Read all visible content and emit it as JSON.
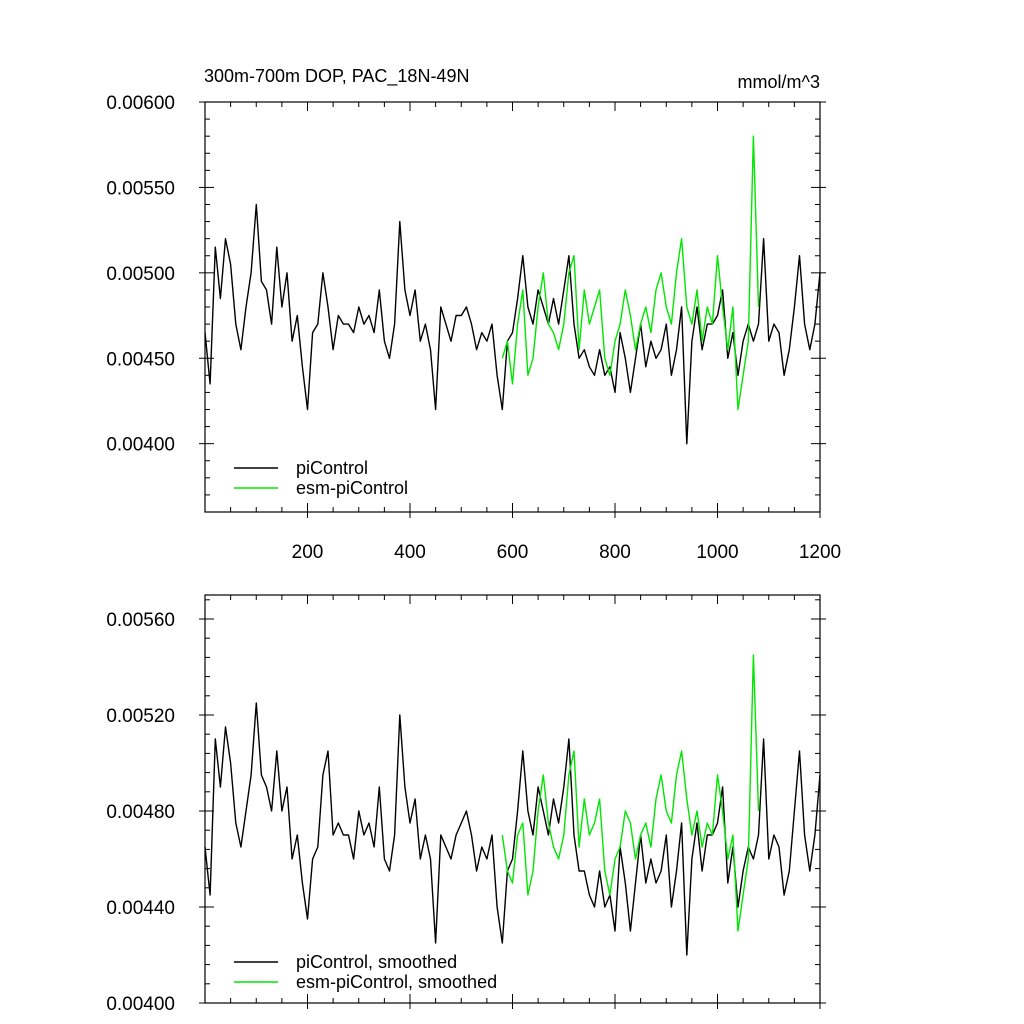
{
  "title": "300m-700m DOP, PAC_18N-49N",
  "units": "mmol/m^3",
  "colors": {
    "piControl": "#000000",
    "esm_piControl": "#00e600"
  },
  "chart_data": [
    {
      "type": "line",
      "title": "300m-700m DOP, PAC_18N-49N",
      "units": "mmol/m^3",
      "xlim": [
        0,
        1200
      ],
      "ylim": [
        0.0036,
        0.006
      ],
      "xticks": [
        200,
        400,
        600,
        800,
        1000,
        1200
      ],
      "xtick_labels": [
        "200",
        "400",
        "600",
        "800",
        "1000",
        "1200"
      ],
      "yticks": [
        0.004,
        0.0045,
        0.005,
        0.0055,
        0.006
      ],
      "ytick_labels": [
        "0.00400",
        "0.00450",
        "0.00500",
        "0.00550",
        "0.00600"
      ],
      "legend": "bottom-left",
      "grid": false,
      "series": [
        {
          "name": "piControl",
          "color": "#000000",
          "x": [
            0,
            10,
            20,
            30,
            40,
            50,
            60,
            70,
            80,
            90,
            100,
            110,
            120,
            130,
            140,
            150,
            160,
            170,
            180,
            190,
            200,
            210,
            220,
            230,
            240,
            250,
            260,
            270,
            280,
            290,
            300,
            310,
            320,
            330,
            340,
            350,
            360,
            370,
            380,
            390,
            400,
            410,
            420,
            430,
            440,
            450,
            460,
            470,
            480,
            490,
            500,
            510,
            520,
            530,
            540,
            550,
            560,
            570,
            580,
            590,
            600,
            610,
            620,
            630,
            640,
            650,
            660,
            670,
            680,
            690,
            700,
            710,
            720,
            730,
            740,
            750,
            760,
            770,
            780,
            790,
            800,
            810,
            820,
            830,
            840,
            850,
            860,
            870,
            880,
            890,
            900,
            910,
            920,
            930,
            940,
            950,
            960,
            970,
            980,
            990,
            1000,
            1010,
            1020,
            1030,
            1040,
            1050,
            1060,
            1070,
            1080,
            1090,
            1100,
            1110,
            1120,
            1130,
            1140,
            1150,
            1160,
            1170,
            1180,
            1190,
            1200
          ],
          "values": [
            0.00465,
            0.00435,
            0.00515,
            0.00485,
            0.0052,
            0.00505,
            0.0047,
            0.00455,
            0.0048,
            0.005,
            0.0054,
            0.00495,
            0.0049,
            0.0047,
            0.00515,
            0.0048,
            0.005,
            0.0046,
            0.00475,
            0.00445,
            0.0042,
            0.00465,
            0.0047,
            0.005,
            0.0048,
            0.00455,
            0.00475,
            0.0047,
            0.0047,
            0.00465,
            0.0048,
            0.0047,
            0.00475,
            0.00465,
            0.0049,
            0.0046,
            0.0045,
            0.0047,
            0.0053,
            0.0049,
            0.00475,
            0.0049,
            0.0046,
            0.0047,
            0.00455,
            0.0042,
            0.0048,
            0.0047,
            0.0046,
            0.00475,
            0.00475,
            0.0048,
            0.0047,
            0.00455,
            0.00465,
            0.0046,
            0.0047,
            0.0044,
            0.0042,
            0.0046,
            0.00465,
            0.00485,
            0.0051,
            0.0048,
            0.0047,
            0.0049,
            0.0048,
            0.0047,
            0.00485,
            0.0047,
            0.0049,
            0.0051,
            0.0047,
            0.0045,
            0.00455,
            0.00445,
            0.0044,
            0.00455,
            0.0044,
            0.00445,
            0.0043,
            0.00465,
            0.0045,
            0.0043,
            0.0045,
            0.0047,
            0.00445,
            0.0046,
            0.0045,
            0.00455,
            0.0047,
            0.0044,
            0.00455,
            0.0048,
            0.004,
            0.0046,
            0.0048,
            0.00455,
            0.0047,
            0.0047,
            0.00475,
            0.0049,
            0.0045,
            0.00465,
            0.0044,
            0.0046,
            0.0047,
            0.0046,
            0.0047,
            0.0052,
            0.0046,
            0.0047,
            0.00465,
            0.0044,
            0.00455,
            0.0048,
            0.0051,
            0.0047,
            0.00455,
            0.0047,
            0.005
          ]
        },
        {
          "name": "esm-piControl",
          "color": "#00e600",
          "x": [
            580,
            590,
            600,
            610,
            620,
            630,
            640,
            650,
            660,
            670,
            680,
            690,
            700,
            710,
            720,
            730,
            740,
            750,
            760,
            770,
            780,
            790,
            800,
            810,
            820,
            830,
            840,
            850,
            860,
            870,
            880,
            890,
            900,
            910,
            920,
            930,
            940,
            950,
            960,
            970,
            980,
            990,
            1000,
            1010,
            1020,
            1030,
            1040,
            1050,
            1060,
            1070,
            1080
          ],
          "values": [
            0.0045,
            0.0046,
            0.00435,
            0.0047,
            0.0049,
            0.0044,
            0.0045,
            0.0048,
            0.005,
            0.0047,
            0.00465,
            0.00455,
            0.0047,
            0.005,
            0.0051,
            0.00455,
            0.0049,
            0.0047,
            0.0048,
            0.0049,
            0.0045,
            0.0044,
            0.0046,
            0.0047,
            0.0049,
            0.00475,
            0.00455,
            0.0047,
            0.0048,
            0.00465,
            0.0049,
            0.005,
            0.0048,
            0.0047,
            0.005,
            0.0052,
            0.0048,
            0.0047,
            0.0049,
            0.0046,
            0.0048,
            0.0047,
            0.0051,
            0.0048,
            0.00455,
            0.0048,
            0.0042,
            0.0044,
            0.0046,
            0.0058,
            0.0048
          ]
        }
      ]
    },
    {
      "type": "line",
      "xlim": [
        0,
        1200
      ],
      "ylim": [
        0.004,
        0.0057
      ],
      "xticks": [
        200,
        400,
        600,
        800,
        1000,
        1200
      ],
      "yticks": [
        0.004,
        0.0044,
        0.0048,
        0.0052,
        0.0056
      ],
      "ytick_labels": [
        "0.00400",
        "0.00440",
        "0.00480",
        "0.00520",
        "0.00560"
      ],
      "legend": "bottom-left",
      "grid": false,
      "series": [
        {
          "name": "piControl, smoothed",
          "color": "#000000",
          "x": [
            0,
            10,
            20,
            30,
            40,
            50,
            60,
            70,
            80,
            90,
            100,
            110,
            120,
            130,
            140,
            150,
            160,
            170,
            180,
            190,
            200,
            210,
            220,
            230,
            240,
            250,
            260,
            270,
            280,
            290,
            300,
            310,
            320,
            330,
            340,
            350,
            360,
            370,
            380,
            390,
            400,
            410,
            420,
            430,
            440,
            450,
            460,
            470,
            480,
            490,
            500,
            510,
            520,
            530,
            540,
            550,
            560,
            570,
            580,
            590,
            600,
            610,
            620,
            630,
            640,
            650,
            660,
            670,
            680,
            690,
            700,
            710,
            720,
            730,
            740,
            750,
            760,
            770,
            780,
            790,
            800,
            810,
            820,
            830,
            840,
            850,
            860,
            870,
            880,
            890,
            900,
            910,
            920,
            930,
            940,
            950,
            960,
            970,
            980,
            990,
            1000,
            1010,
            1020,
            1030,
            1040,
            1050,
            1060,
            1070,
            1080,
            1090,
            1100,
            1110,
            1120,
            1130,
            1140,
            1150,
            1160,
            1170,
            1180,
            1190,
            1200
          ],
          "values": [
            0.00465,
            0.00445,
            0.0051,
            0.0049,
            0.00515,
            0.005,
            0.00475,
            0.00465,
            0.0048,
            0.00495,
            0.00525,
            0.00495,
            0.0049,
            0.0048,
            0.00505,
            0.0048,
            0.0049,
            0.0046,
            0.0047,
            0.0045,
            0.00435,
            0.0046,
            0.00465,
            0.00495,
            0.00505,
            0.0047,
            0.00475,
            0.0047,
            0.0047,
            0.0046,
            0.0048,
            0.0047,
            0.00475,
            0.00465,
            0.0049,
            0.0046,
            0.00455,
            0.0047,
            0.0052,
            0.0049,
            0.00475,
            0.00485,
            0.0046,
            0.0047,
            0.0046,
            0.00425,
            0.0047,
            0.00465,
            0.0046,
            0.0047,
            0.00475,
            0.0048,
            0.0047,
            0.00455,
            0.00465,
            0.0046,
            0.0047,
            0.0044,
            0.00425,
            0.00455,
            0.0046,
            0.0048,
            0.00505,
            0.0048,
            0.0047,
            0.0049,
            0.0048,
            0.0047,
            0.00485,
            0.00475,
            0.0049,
            0.0051,
            0.0047,
            0.00455,
            0.00455,
            0.00445,
            0.0044,
            0.00455,
            0.0044,
            0.00445,
            0.0043,
            0.00465,
            0.0045,
            0.0043,
            0.0045,
            0.0047,
            0.0045,
            0.0046,
            0.0045,
            0.00455,
            0.0047,
            0.0044,
            0.00455,
            0.00475,
            0.0042,
            0.0046,
            0.00475,
            0.00455,
            0.0047,
            0.0047,
            0.00475,
            0.0049,
            0.0045,
            0.00465,
            0.0044,
            0.00455,
            0.00465,
            0.0046,
            0.0047,
            0.0051,
            0.0046,
            0.0047,
            0.00465,
            0.00445,
            0.00455,
            0.0048,
            0.00505,
            0.0047,
            0.00455,
            0.0047,
            0.00495
          ]
        },
        {
          "name": "esm-piControl, smoothed",
          "color": "#00e600",
          "x": [
            580,
            590,
            600,
            610,
            620,
            630,
            640,
            650,
            660,
            670,
            680,
            690,
            700,
            710,
            720,
            730,
            740,
            750,
            760,
            770,
            780,
            790,
            800,
            810,
            820,
            830,
            840,
            850,
            860,
            870,
            880,
            890,
            900,
            910,
            920,
            930,
            940,
            950,
            960,
            970,
            980,
            990,
            1000,
            1010,
            1020,
            1030,
            1040,
            1050,
            1060,
            1070,
            1080
          ],
          "values": [
            0.0047,
            0.00455,
            0.0045,
            0.0047,
            0.00475,
            0.00445,
            0.00455,
            0.0048,
            0.00495,
            0.00475,
            0.00465,
            0.0046,
            0.0047,
            0.00495,
            0.00505,
            0.00465,
            0.00485,
            0.0047,
            0.00475,
            0.00485,
            0.00455,
            0.00445,
            0.0046,
            0.00465,
            0.0048,
            0.00475,
            0.0046,
            0.0047,
            0.00475,
            0.00465,
            0.00485,
            0.00495,
            0.0048,
            0.00475,
            0.00495,
            0.00505,
            0.00485,
            0.0047,
            0.0048,
            0.00465,
            0.00475,
            0.0047,
            0.00495,
            0.0048,
            0.0046,
            0.0047,
            0.0043,
            0.00445,
            0.0046,
            0.00545,
            0.0048
          ]
        }
      ]
    }
  ]
}
